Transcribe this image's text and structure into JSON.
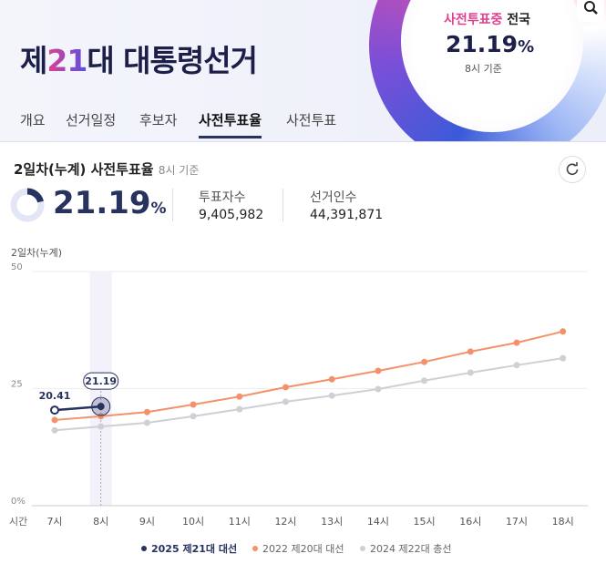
{
  "header": {
    "title_prefix": "제",
    "title_number": "21",
    "title_suffix": "대 대통령선거",
    "status_highlight": "사전투표중",
    "status_region": "전국",
    "rate": "21.19",
    "rate_unit": "%",
    "rate_time": "8시 기준"
  },
  "tabs": [
    "개요",
    "선거일정",
    "후보자",
    "사전투표율",
    "사전투표"
  ],
  "active_tab": 3,
  "summary": {
    "title": "2일차(누계) 사전투표율",
    "time": "8시 기준",
    "rate": 21.19,
    "rate_unit": "%",
    "voters_label": "투표자수",
    "voters": "9,405,982",
    "electors_label": "선거인수",
    "electors": "44,391,871"
  },
  "chart_data": {
    "type": "line",
    "y_label": "2일차(누계)",
    "x_label": "시간",
    "categories": [
      "7시",
      "8시",
      "9시",
      "10시",
      "11시",
      "12시",
      "13시",
      "14시",
      "15시",
      "16시",
      "17시",
      "18시"
    ],
    "series": [
      {
        "name": "2025 제21대 대선",
        "color": "#27325f",
        "values": [
          20.41,
          21.19,
          null,
          null,
          null,
          null,
          null,
          null,
          null,
          null,
          null,
          null
        ]
      },
      {
        "name": "2022 제20대 대선",
        "color": "#f4916b",
        "values": [
          18.3,
          19.1,
          20.0,
          21.6,
          23.3,
          25.3,
          27.0,
          28.8,
          30.7,
          32.9,
          34.8,
          37.2
        ]
      },
      {
        "name": "2024 제22대 총선",
        "color": "#cfcfd5",
        "values": [
          16.1,
          16.9,
          17.7,
          19.1,
          20.6,
          22.2,
          23.5,
          24.9,
          26.7,
          28.4,
          30.0,
          31.5
        ]
      }
    ],
    "ylim": [
      0,
      50
    ],
    "yticks": [
      {
        "value": 0,
        "label": "0%"
      },
      25,
      50
    ],
    "grid": true,
    "highlight_index": 1
  }
}
